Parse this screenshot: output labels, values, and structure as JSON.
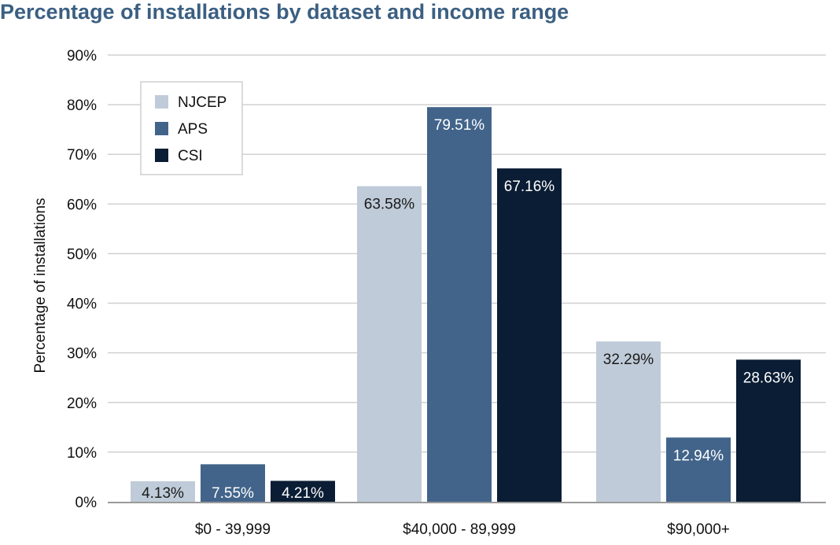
{
  "chart_data": {
    "type": "bar",
    "title": "Percentage of installations by dataset and income range",
    "xlabel": "",
    "ylabel": "Percentage of installations",
    "ylim": [
      0,
      90
    ],
    "yticks": [
      "0%",
      "10%",
      "20%",
      "30%",
      "40%",
      "50%",
      "60%",
      "70%",
      "80%",
      "90%"
    ],
    "grid": true,
    "legend_position": "top-left",
    "categories": [
      "$0 - 39,999",
      "$40,000 - 89,999",
      "$90,000+"
    ],
    "series": [
      {
        "name": "NJCEP",
        "color": "#bfcbd8",
        "label_color": "#1a1a1a",
        "values": [
          4.13,
          63.58,
          32.29
        ],
        "labels": [
          "4.13%",
          "63.58%",
          "32.29%"
        ]
      },
      {
        "name": "APS",
        "color": "#42648a",
        "label_color": "#ffffff",
        "values": [
          7.55,
          79.51,
          12.94
        ],
        "labels": [
          "7.55%",
          "79.51%",
          "12.94%"
        ]
      },
      {
        "name": "CSI",
        "color": "#0a1d34",
        "label_color": "#ffffff",
        "values": [
          4.21,
          67.16,
          28.63
        ],
        "labels": [
          "4.21%",
          "67.16%",
          "28.63%"
        ]
      }
    ]
  },
  "colors": {
    "title": "#3b5f82",
    "grid": "#d0d0d0",
    "axis": "#9a9a9a",
    "text": "#111111"
  }
}
